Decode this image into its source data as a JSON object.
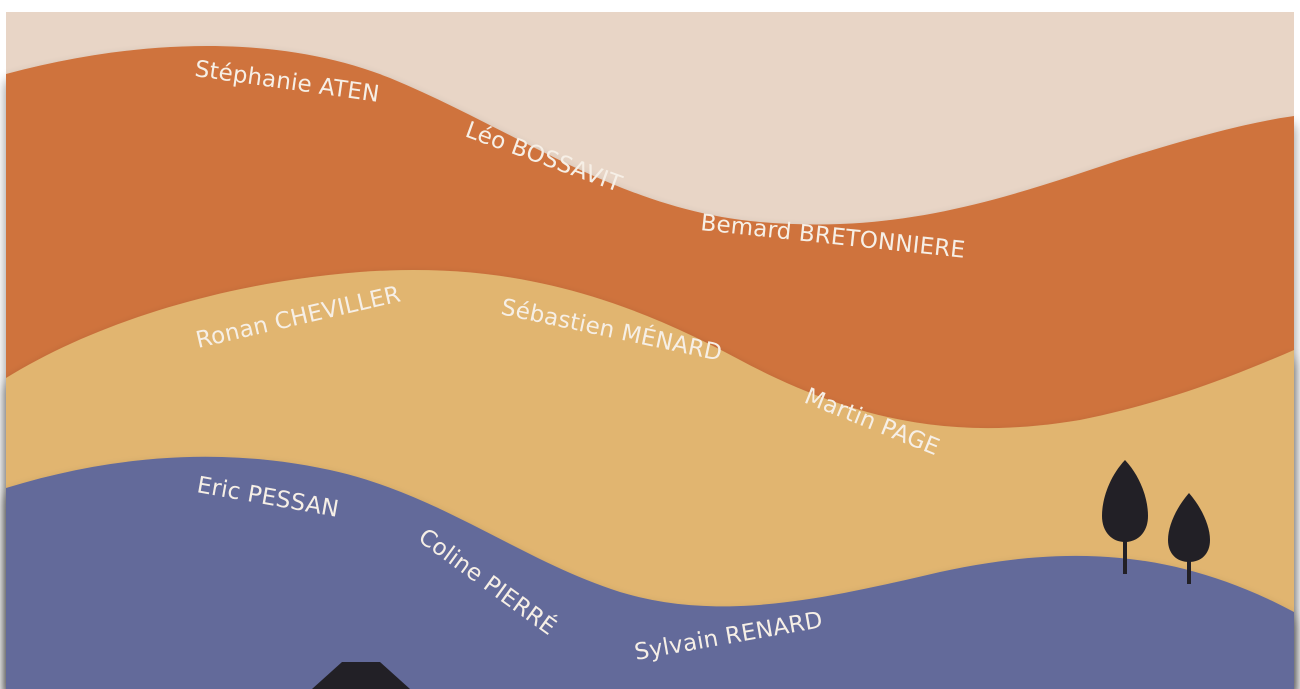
{
  "names": {
    "aten": "Stéphanie ATEN",
    "bossavit": "Léo BOSSAVIT",
    "bretonniere": "Bemard BRETONNIERE",
    "cheviller": "Ronan CHEVILLER",
    "menard": "Sébastien MÉNARD",
    "page": "Martin PAGE",
    "pessan": "Eric PESSAN",
    "pierre": "Coline PIERRÉ",
    "renard": "Sylvain RENARD"
  },
  "colors": {
    "sky": "#e8d5c6",
    "orange_band": "#cf733d",
    "sand_band": "#e1b56f",
    "blue_band": "#636b9a",
    "dark": "#222026",
    "text": "#f6efe6"
  }
}
